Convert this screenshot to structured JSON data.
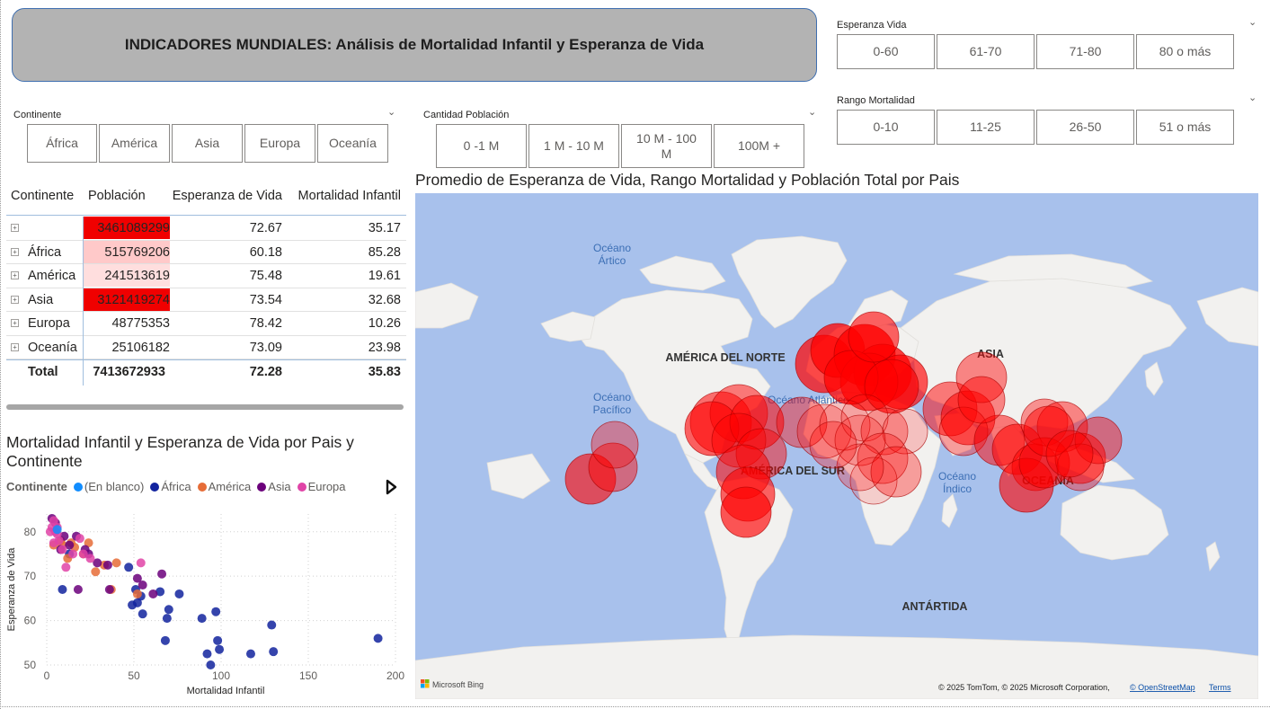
{
  "title": "INDICADORES MUNDIALES: Análisis de Mortalidad Infantil y Esperanza de Vida",
  "slicers": {
    "continente": {
      "label": "Continente",
      "options": [
        "África",
        "América",
        "Asia",
        "Europa",
        "Oceanía"
      ]
    },
    "poblacion": {
      "label": "Cantidad Población",
      "options": [
        "0 -1 M",
        "1 M - 10 M",
        "10 M - 100 M",
        "100M +"
      ]
    },
    "esperanza": {
      "label": "Esperanza Vida",
      "options": [
        "0-60",
        "61-70",
        "71-80",
        "80 o más"
      ]
    },
    "mortalidad": {
      "label": "Rango Mortalidad",
      "options": [
        "0-10",
        "11-25",
        "26-50",
        "51 o más"
      ]
    }
  },
  "table": {
    "columns": [
      "Continente",
      "Población",
      "Esperanza de Vida",
      "Mortalidad Infantil"
    ],
    "rows": [
      {
        "continente": "",
        "poblacion": "3461089299",
        "esperanza": "72.67",
        "mortalidad": "35.17",
        "heat": 1.0
      },
      {
        "continente": "África",
        "poblacion": "515769206",
        "esperanza": "60.18",
        "mortalidad": "85.28",
        "heat": 0.15
      },
      {
        "continente": "América",
        "poblacion": "241513619",
        "esperanza": "75.48",
        "mortalidad": "19.61",
        "heat": 0.07
      },
      {
        "continente": "Asia",
        "poblacion": "3121419274",
        "esperanza": "73.54",
        "mortalidad": "32.68",
        "heat": 0.9
      },
      {
        "continente": "Europa",
        "poblacion": "48775353",
        "esperanza": "78.42",
        "mortalidad": "10.26",
        "heat": 0.0
      },
      {
        "continente": "Oceanía",
        "poblacion": "25106182",
        "esperanza": "73.09",
        "mortalidad": "23.98",
        "heat": 0.0
      }
    ],
    "total": {
      "label": "Total",
      "poblacion": "7413672933",
      "esperanza": "72.28",
      "mortalidad": "35.83"
    },
    "heat_color": "#ff0000"
  },
  "scatter": {
    "title": "Mortalidad Infantil y Esperanza de Vida por Pais y Continente",
    "legend_label": "Continente",
    "legend": [
      {
        "name": "(En blanco)",
        "color": "#118dff"
      },
      {
        "name": "África",
        "color": "#12239e"
      },
      {
        "name": "América",
        "color": "#e66c37"
      },
      {
        "name": "Asia",
        "color": "#6b007b"
      },
      {
        "name": "Europa",
        "color": "#e044a7"
      }
    ]
  },
  "chart_data": {
    "type": "scatter",
    "xlabel": "Mortalidad Infantil",
    "ylabel": "Esperanza de Vida",
    "xlim": [
      0,
      200
    ],
    "ylim": [
      50,
      84
    ],
    "xticks": [
      0,
      50,
      100,
      150,
      200
    ],
    "yticks": [
      50,
      60,
      70,
      80
    ],
    "grid": true,
    "series": [
      {
        "name": "África",
        "color": "#12239e",
        "points": [
          [
            190,
            56
          ],
          [
            129,
            59
          ],
          [
            130,
            53
          ],
          [
            117,
            52.5
          ],
          [
            99,
            53.5
          ],
          [
            98,
            55.5
          ],
          [
            97,
            62
          ],
          [
            92,
            52.5
          ],
          [
            89,
            60.5
          ],
          [
            94,
            50
          ],
          [
            76,
            66
          ],
          [
            69,
            60.5
          ],
          [
            70,
            62.5
          ],
          [
            68,
            55.5
          ],
          [
            65,
            66.5
          ],
          [
            55,
            61.5
          ],
          [
            54,
            65.5
          ],
          [
            51,
            67
          ],
          [
            49,
            63.5
          ],
          [
            47,
            72
          ],
          [
            52,
            64
          ],
          [
            9,
            67
          ],
          [
            13,
            75
          ]
        ]
      },
      {
        "name": "América",
        "color": "#e66c37",
        "points": [
          [
            4,
            77
          ],
          [
            8,
            78
          ],
          [
            12,
            74
          ],
          [
            16,
            76.5
          ],
          [
            24,
            77.5
          ],
          [
            28,
            71
          ],
          [
            21,
            75
          ],
          [
            33,
            72.5
          ],
          [
            40,
            73
          ],
          [
            52,
            66
          ],
          [
            37,
            67
          ],
          [
            9,
            77
          ],
          [
            14,
            77.5
          ]
        ]
      },
      {
        "name": "Asia",
        "color": "#6b007b",
        "points": [
          [
            3,
            83
          ],
          [
            5,
            82
          ],
          [
            10,
            79
          ],
          [
            13,
            77
          ],
          [
            17,
            79
          ],
          [
            24,
            75
          ],
          [
            29,
            73
          ],
          [
            35,
            72.5
          ],
          [
            36,
            67
          ],
          [
            52,
            69.5
          ],
          [
            55,
            68
          ],
          [
            61,
            66
          ],
          [
            66,
            70.5
          ],
          [
            18,
            67
          ],
          [
            8,
            76
          ],
          [
            22,
            76
          ]
        ]
      },
      {
        "name": "Europa",
        "color": "#e044a7",
        "points": [
          [
            2,
            80
          ],
          [
            3,
            81
          ],
          [
            4,
            82.5
          ],
          [
            5,
            80
          ],
          [
            6,
            79.5
          ],
          [
            7,
            78
          ],
          [
            4,
            77.5
          ],
          [
            9,
            76
          ],
          [
            11,
            72
          ],
          [
            15,
            75
          ],
          [
            19,
            78.5
          ],
          [
            21,
            75
          ],
          [
            25,
            74
          ],
          [
            54,
            73
          ],
          [
            6,
            81
          ]
        ]
      },
      {
        "name": "(En blanco)",
        "color": "#118dff",
        "points": [
          [
            6,
            80.5
          ]
        ]
      }
    ]
  },
  "map": {
    "title": "Promedio de Esperanza de Vida, Rango Mortalidad y Población Total por Pais",
    "labels": {
      "arctic": [
        "Océano",
        "Ártico"
      ],
      "pacific": [
        "Océano",
        "Pacífico"
      ],
      "indian": [
        "Océano",
        "Índico"
      ],
      "atlantic": "Océano Atlántico",
      "north_america": "AMÉRICA DEL NORTE",
      "south_america": "AMÉRICA DEL SUR",
      "asia": "ASIA",
      "oceania": "OCEANÍA",
      "antarctica": "ANTÁRTIDA"
    },
    "bing_label": "Microsoft Bing",
    "copyright": "© 2025 TomTom, © 2025 Microsoft Corporation,",
    "osm_link": "© OpenStreetMap",
    "terms_link": "Terms",
    "colors": {
      "water": "#a8c1ec",
      "land": "#f2f1ef",
      "bubble": "#ff0000"
    }
  }
}
